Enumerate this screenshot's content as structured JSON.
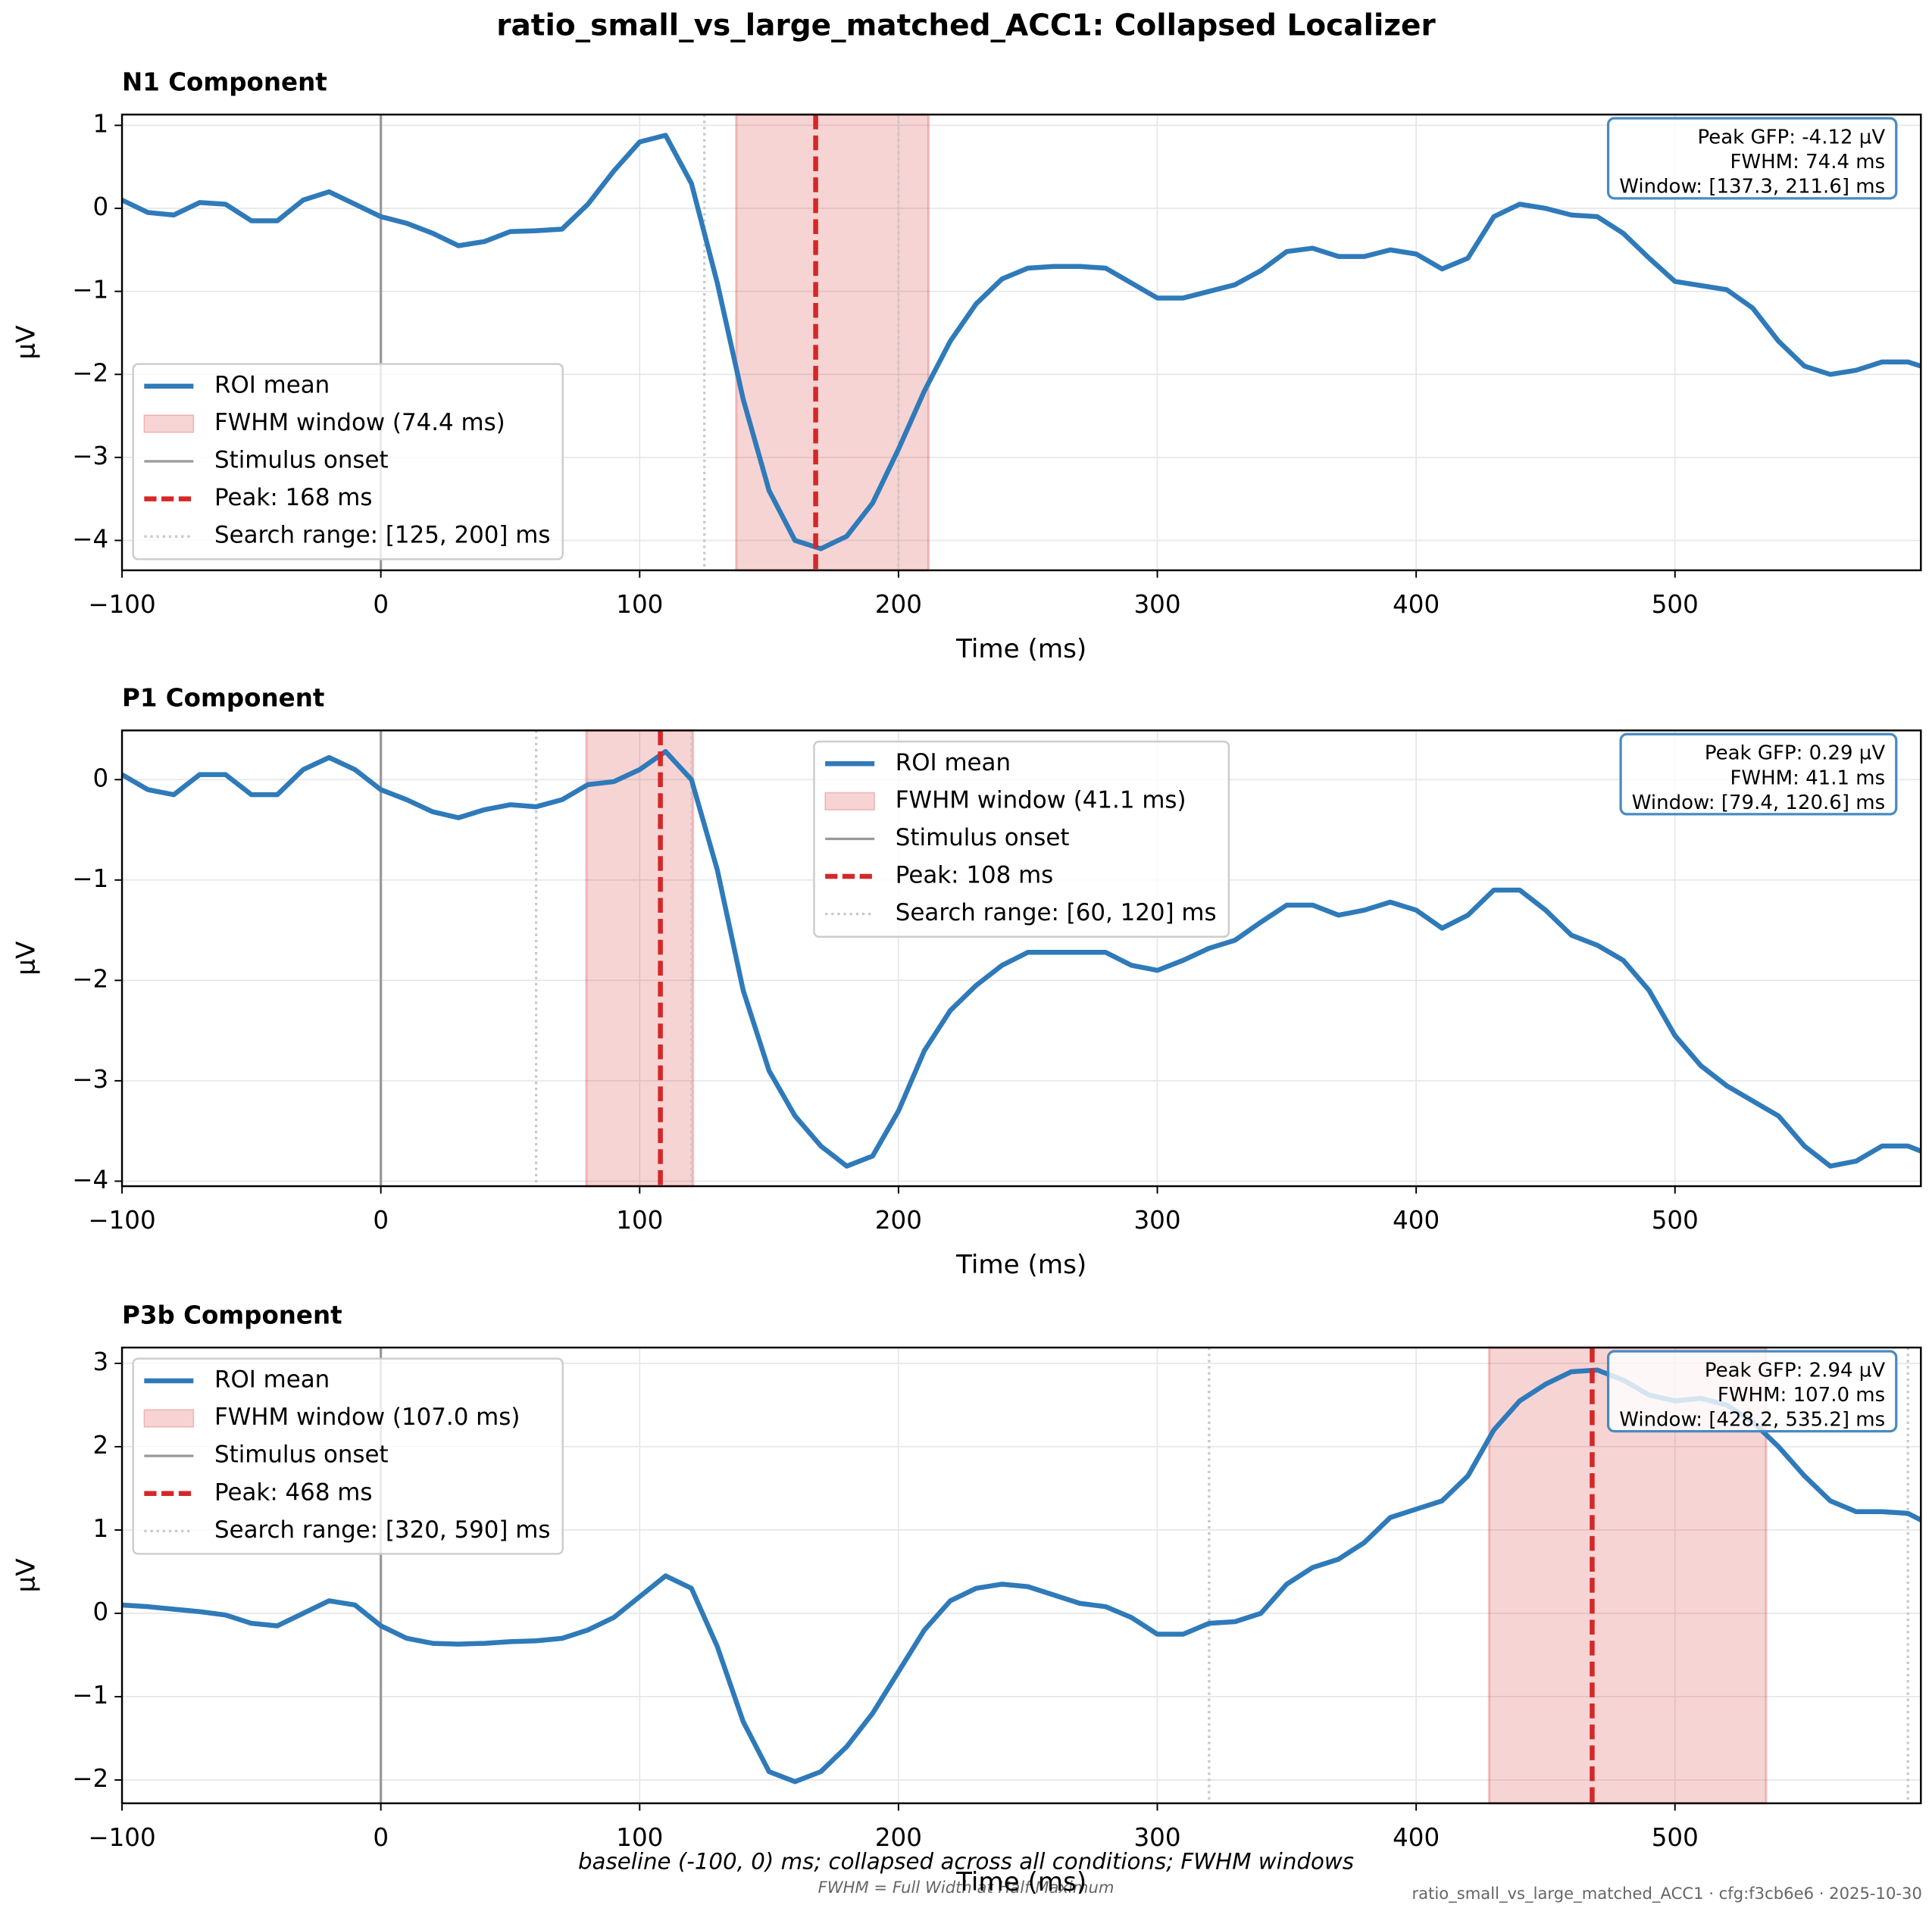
{
  "title": "ratio_small_vs_large_matched_ACC1: Collapsed Localizer",
  "caption": "baseline (-100, 0) ms; collapsed across all conditions; FWHM windows",
  "note": "FWHM = Full Width at Half Maximum",
  "stamp": "ratio_small_vs_large_matched_ACC1 · cfg:f3cb6e6 · 2025-10-30",
  "chart_data": [
    {
      "type": "line",
      "title": "N1 Component",
      "xlabel": "Time (ms)",
      "ylabel": "μV",
      "x": [
        -100,
        -90,
        -80,
        -70,
        -60,
        -50,
        -40,
        -30,
        -20,
        -10,
        0,
        10,
        20,
        30,
        40,
        50,
        60,
        70,
        80,
        90,
        100,
        110,
        120,
        130,
        140,
        150,
        160,
        170,
        180,
        190,
        200,
        210,
        220,
        230,
        240,
        250,
        260,
        270,
        280,
        290,
        300,
        310,
        320,
        330,
        340,
        350,
        360,
        370,
        380,
        390,
        400,
        410,
        420,
        430,
        440,
        450,
        460,
        470,
        480,
        490,
        500,
        510,
        520,
        530,
        540,
        550,
        560,
        570,
        580,
        590,
        595
      ],
      "series": [
        {
          "name": "ROI mean",
          "color": "#2f7ab9",
          "values": [
            0.1,
            -0.05,
            -0.08,
            0.07,
            0.05,
            -0.15,
            -0.15,
            0.1,
            0.2,
            0.05,
            -0.1,
            -0.18,
            -0.3,
            -0.45,
            -0.4,
            -0.28,
            -0.27,
            -0.25,
            0.05,
            0.45,
            0.8,
            0.88,
            0.3,
            -0.9,
            -2.3,
            -3.4,
            -4.0,
            -4.1,
            -3.95,
            -3.55,
            -2.9,
            -2.2,
            -1.6,
            -1.15,
            -0.85,
            -0.72,
            -0.7,
            -0.7,
            -0.72,
            -0.9,
            -1.08,
            -1.08,
            -1.0,
            -0.92,
            -0.75,
            -0.52,
            -0.48,
            -0.58,
            -0.58,
            -0.5,
            -0.55,
            -0.73,
            -0.6,
            -0.1,
            0.05,
            0.0,
            -0.08,
            -0.1,
            -0.3,
            -0.6,
            -0.88,
            -0.93,
            -0.98,
            -1.2,
            -1.6,
            -1.9,
            -2.0,
            -1.95,
            -1.85,
            -1.85,
            -1.9
          ]
        }
      ],
      "fwhm_window": {
        "name": "FWHM window (74.4 ms)",
        "range": [
          137.3,
          211.6
        ],
        "color": "#d62728"
      },
      "onset": {
        "name": "Stimulus onset",
        "value": 0,
        "color": "#999999"
      },
      "peak": {
        "name": "Peak: 168 ms",
        "value": 168,
        "color": "#d62728"
      },
      "search_range": {
        "name": "Search range: [125, 200] ms",
        "range": [
          125,
          200
        ],
        "color": "#c8c8c8"
      },
      "annotation": [
        "Peak GFP: -4.12 µV",
        "FWHM: 74.4 ms",
        "Window: [137.3, 211.6] ms"
      ],
      "legend": "lower left",
      "grid": true,
      "xlim": [
        -100,
        595
      ],
      "xticks": [
        {
          "value": -100,
          "label": "−100"
        },
        0,
        100,
        200,
        300,
        400,
        500
      ],
      "ylim": [
        -4.36,
        1.13
      ],
      "yticks": [
        {
          "value": -4,
          "label": "−4"
        },
        {
          "value": -3,
          "label": "−3"
        },
        {
          "value": -2,
          "label": "−2"
        },
        {
          "value": -1,
          "label": "−1"
        },
        0,
        1
      ]
    },
    {
      "type": "line",
      "title": "P1 Component",
      "xlabel": "Time (ms)",
      "ylabel": "μV",
      "x": [
        -100,
        -90,
        -80,
        -70,
        -60,
        -50,
        -40,
        -30,
        -20,
        -10,
        0,
        10,
        20,
        30,
        40,
        50,
        60,
        70,
        80,
        90,
        100,
        110,
        120,
        130,
        140,
        150,
        160,
        170,
        180,
        190,
        200,
        210,
        220,
        230,
        240,
        250,
        260,
        270,
        280,
        290,
        300,
        310,
        320,
        330,
        340,
        350,
        360,
        370,
        380,
        390,
        400,
        410,
        420,
        430,
        440,
        450,
        460,
        470,
        480,
        490,
        500,
        510,
        520,
        530,
        540,
        550,
        560,
        570,
        580,
        590,
        595
      ],
      "series": [
        {
          "name": "ROI mean",
          "color": "#2f7ab9",
          "values": [
            0.05,
            -0.1,
            -0.15,
            0.05,
            0.05,
            -0.15,
            -0.15,
            0.1,
            0.22,
            0.1,
            -0.1,
            -0.2,
            -0.32,
            -0.38,
            -0.3,
            -0.25,
            -0.27,
            -0.2,
            -0.05,
            -0.02,
            0.1,
            0.28,
            0.0,
            -0.9,
            -2.1,
            -2.9,
            -3.35,
            -3.65,
            -3.85,
            -3.75,
            -3.3,
            -2.7,
            -2.3,
            -2.05,
            -1.85,
            -1.72,
            -1.72,
            -1.72,
            -1.72,
            -1.85,
            -1.9,
            -1.8,
            -1.68,
            -1.6,
            -1.42,
            -1.25,
            -1.25,
            -1.35,
            -1.3,
            -1.22,
            -1.3,
            -1.48,
            -1.35,
            -1.1,
            -1.1,
            -1.3,
            -1.55,
            -1.65,
            -1.8,
            -2.1,
            -2.55,
            -2.85,
            -3.05,
            -3.2,
            -3.35,
            -3.65,
            -3.85,
            -3.8,
            -3.65,
            -3.65,
            -3.7
          ]
        }
      ],
      "fwhm_window": {
        "name": "FWHM window (41.1 ms)",
        "range": [
          79.4,
          120.6
        ],
        "color": "#d62728"
      },
      "onset": {
        "name": "Stimulus onset",
        "value": 0,
        "color": "#999999"
      },
      "peak": {
        "name": "Peak: 108 ms",
        "value": 108,
        "color": "#d62728"
      },
      "search_range": {
        "name": "Search range: [60, 120] ms",
        "range": [
          60,
          120
        ],
        "color": "#c8c8c8"
      },
      "annotation": [
        "Peak GFP: 0.29 µV",
        "FWHM: 41.1 ms",
        "Window: [79.4, 120.6] ms"
      ],
      "legend": "upper center",
      "grid": true,
      "xlim": [
        -100,
        595
      ],
      "xticks": [
        {
          "value": -100,
          "label": "−100"
        },
        0,
        100,
        200,
        300,
        400,
        500
      ],
      "ylim": [
        -4.05,
        0.49
      ],
      "yticks": [
        {
          "value": -4,
          "label": "−4"
        },
        {
          "value": -3,
          "label": "−3"
        },
        {
          "value": -2,
          "label": "−2"
        },
        {
          "value": -1,
          "label": "−1"
        },
        0
      ]
    },
    {
      "type": "line",
      "title": "P3b Component",
      "xlabel": "Time (ms)",
      "ylabel": "μV",
      "x": [
        -100,
        -90,
        -80,
        -70,
        -60,
        -50,
        -40,
        -30,
        -20,
        -10,
        0,
        10,
        20,
        30,
        40,
        50,
        60,
        70,
        80,
        90,
        100,
        110,
        120,
        130,
        140,
        150,
        160,
        170,
        180,
        190,
        200,
        210,
        220,
        230,
        240,
        250,
        260,
        270,
        280,
        290,
        300,
        310,
        320,
        330,
        340,
        350,
        360,
        370,
        380,
        390,
        400,
        410,
        420,
        430,
        440,
        450,
        460,
        470,
        480,
        490,
        500,
        510,
        520,
        530,
        540,
        550,
        560,
        570,
        580,
        590,
        595
      ],
      "series": [
        {
          "name": "ROI mean",
          "color": "#2f7ab9",
          "values": [
            0.1,
            0.08,
            0.05,
            0.02,
            -0.02,
            -0.12,
            -0.15,
            0.0,
            0.15,
            0.1,
            -0.15,
            -0.3,
            -0.36,
            -0.37,
            -0.36,
            -0.34,
            -0.33,
            -0.3,
            -0.2,
            -0.05,
            0.2,
            0.45,
            0.3,
            -0.4,
            -1.3,
            -1.9,
            -2.02,
            -1.9,
            -1.6,
            -1.2,
            -0.7,
            -0.2,
            0.15,
            0.3,
            0.35,
            0.32,
            0.22,
            0.12,
            0.08,
            -0.05,
            -0.25,
            -0.25,
            -0.12,
            -0.1,
            0.0,
            0.35,
            0.55,
            0.65,
            0.85,
            1.15,
            1.25,
            1.35,
            1.65,
            2.2,
            2.55,
            2.75,
            2.9,
            2.92,
            2.8,
            2.62,
            2.55,
            2.58,
            2.5,
            2.3,
            2.0,
            1.65,
            1.35,
            1.22,
            1.22,
            1.2,
            1.12
          ]
        }
      ],
      "fwhm_window": {
        "name": "FWHM window (107.0 ms)",
        "range": [
          428.2,
          535.2
        ],
        "color": "#d62728"
      },
      "onset": {
        "name": "Stimulus onset",
        "value": 0,
        "color": "#999999"
      },
      "peak": {
        "name": "Peak: 468 ms",
        "value": 468,
        "color": "#d62728"
      },
      "search_range": {
        "name": "Search range: [320, 590] ms",
        "range": [
          320,
          590
        ],
        "color": "#c8c8c8"
      },
      "annotation": [
        "Peak GFP: 2.94 µV",
        "FWHM: 107.0 ms",
        "Window: [428.2, 535.2] ms"
      ],
      "legend": "upper left",
      "grid": true,
      "xlim": [
        -100,
        595
      ],
      "xticks": [
        {
          "value": -100,
          "label": "−100"
        },
        0,
        100,
        200,
        300,
        400,
        500
      ],
      "ylim": [
        -2.28,
        3.19
      ],
      "yticks": [
        {
          "value": -2,
          "label": "−2"
        },
        {
          "value": -1,
          "label": "−1"
        },
        0,
        1,
        2,
        3
      ]
    }
  ]
}
